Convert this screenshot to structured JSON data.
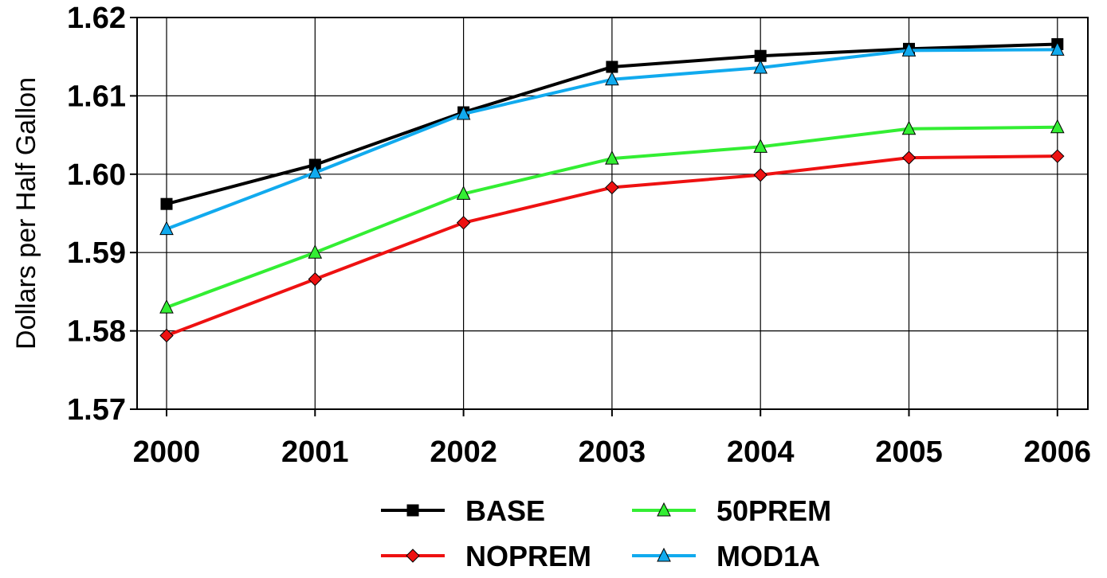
{
  "chart_data": {
    "type": "line",
    "title": "",
    "xlabel": "",
    "ylabel": "Dollars per Half Gallon",
    "ylim": [
      1.57,
      1.62
    ],
    "yticks": [
      "1.57",
      "1.58",
      "1.59",
      "1.60",
      "1.61",
      "1.62"
    ],
    "categories": [
      "2000",
      "2001",
      "2002",
      "2003",
      "2004",
      "2005",
      "2006"
    ],
    "grid": true,
    "legend_position": "bottom",
    "series": [
      {
        "name": "BASE",
        "color": "#000000",
        "marker": "square",
        "values": [
          1.5962,
          1.6012,
          1.6079,
          1.6137,
          1.6151,
          1.616,
          1.6166
        ]
      },
      {
        "name": "50PREM",
        "color": "#33ee33",
        "marker": "triangle",
        "values": [
          1.583,
          1.59,
          1.5975,
          1.602,
          1.6035,
          1.6058,
          1.606
        ]
      },
      {
        "name": "NOPREM",
        "color": "#ee1111",
        "marker": "diamond",
        "values": [
          1.5794,
          1.5866,
          1.5938,
          1.5983,
          1.5999,
          1.6021,
          1.6023
        ]
      },
      {
        "name": "MOD1A",
        "color": "#11aaee",
        "marker": "triangle",
        "values": [
          1.593,
          1.6002,
          1.6077,
          1.6121,
          1.6136,
          1.6158,
          1.6159
        ]
      }
    ]
  }
}
